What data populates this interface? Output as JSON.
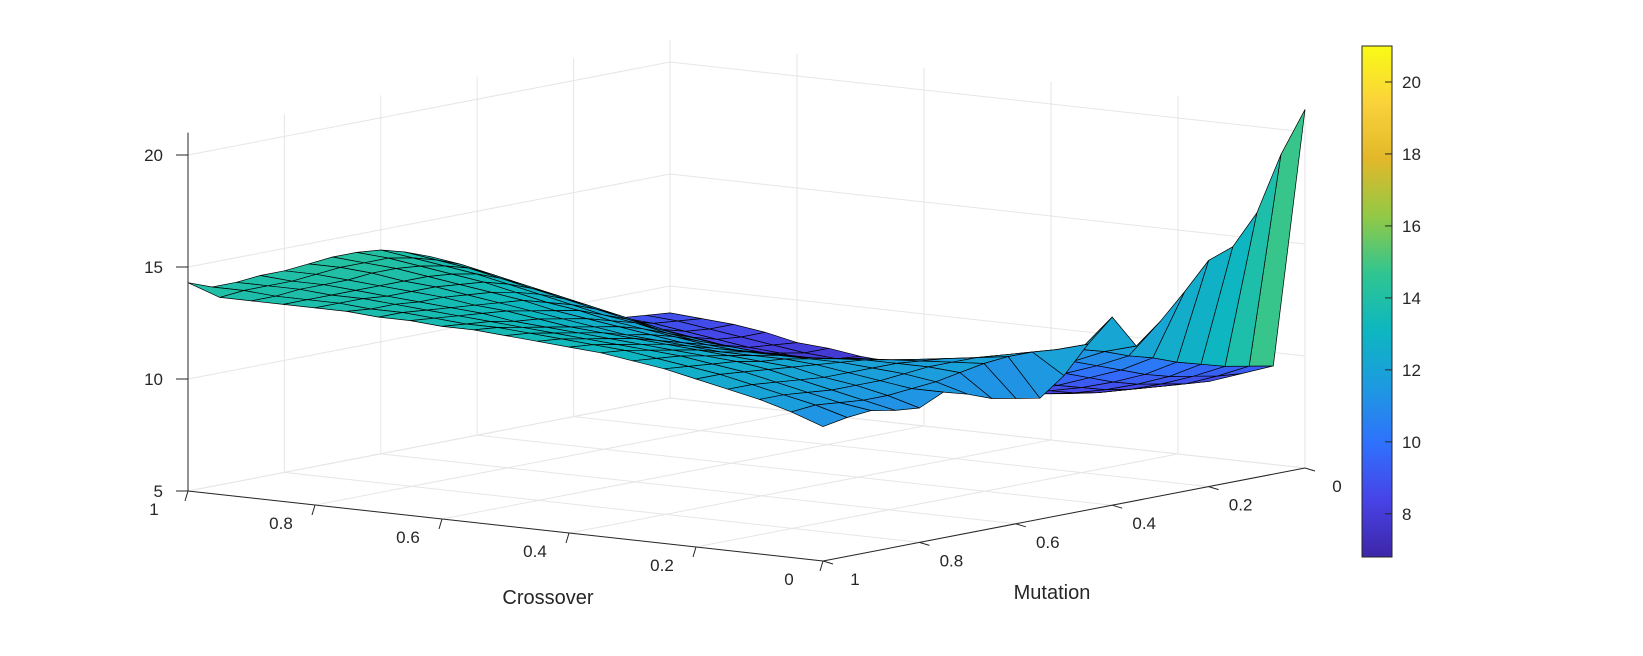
{
  "chart_data": {
    "type": "surface",
    "title": "",
    "xlabel": "Crossover",
    "ylabel": "Mutation",
    "zlabel": "",
    "xlim": [
      0,
      1
    ],
    "ylim": [
      0,
      1
    ],
    "zlim": [
      5,
      21
    ],
    "x_ticks": [
      {
        "value": 0,
        "label": "0"
      },
      {
        "value": 0.2,
        "label": "0.2"
      },
      {
        "value": 0.4,
        "label": "0.4"
      },
      {
        "value": 0.6,
        "label": "0.6"
      },
      {
        "value": 0.8,
        "label": "0.8"
      },
      {
        "value": 1,
        "label": "1"
      }
    ],
    "y_ticks": [
      {
        "value": 0,
        "label": "0"
      },
      {
        "value": 0.2,
        "label": "0.2"
      },
      {
        "value": 0.4,
        "label": "0.4"
      },
      {
        "value": 0.6,
        "label": "0.6"
      },
      {
        "value": 0.8,
        "label": "0.8"
      },
      {
        "value": 1,
        "label": "1"
      }
    ],
    "z_ticks": [
      {
        "value": 5,
        "label": "5"
      },
      {
        "value": 10,
        "label": "10"
      },
      {
        "value": 15,
        "label": "15"
      },
      {
        "value": 20,
        "label": "20"
      }
    ],
    "colorbar": {
      "limits": [
        6.8,
        21
      ],
      "ticks": [
        {
          "value": 8,
          "label": "8"
        },
        {
          "value": 10,
          "label": "10"
        },
        {
          "value": 12,
          "label": "12"
        },
        {
          "value": 14,
          "label": "14"
        },
        {
          "value": 16,
          "label": "16"
        },
        {
          "value": 18,
          "label": "18"
        },
        {
          "value": 20,
          "label": "20"
        }
      ]
    },
    "colormap": [
      "#3e26a8",
      "#4743e6",
      "#2f71fc",
      "#1d9ae0",
      "#0db7c0",
      "#30c590",
      "#92c946",
      "#e2b82a",
      "#fad23b",
      "#f9fb15"
    ],
    "grid": true,
    "x": [
      0,
      0.05,
      0.1,
      0.15,
      0.2,
      0.25,
      0.3,
      0.35,
      0.4,
      0.45,
      0.5,
      0.55,
      0.6,
      0.65,
      0.7,
      0.75,
      0.8,
      0.85,
      0.9,
      0.95,
      1
    ],
    "y": [
      0,
      0.05,
      0.1,
      0.15,
      0.2,
      0.25,
      0.3,
      0.35,
      0.4,
      0.45,
      0.5,
      0.55,
      0.6,
      0.65,
      0.7,
      0.75,
      0.8,
      0.85,
      0.9,
      0.95,
      1
    ],
    "z": [
      [
        21.0,
        9.4,
        8.9,
        8.4,
        8.1,
        7.8,
        7.7,
        7.5,
        7.4,
        7.4,
        7.3,
        7.4,
        7.5,
        7.7,
        7.8,
        8.0,
        8.1,
        8.4,
        8.6,
        8.7,
        8.8
      ],
      [
        19.2,
        9.6,
        9.0,
        8.5,
        8.2,
        7.9,
        7.7,
        7.6,
        7.5,
        7.4,
        7.4,
        7.4,
        7.5,
        7.7,
        7.9,
        8.0,
        8.2,
        8.4,
        8.6,
        8.8,
        8.9
      ],
      [
        16.8,
        9.8,
        9.2,
        8.7,
        8.3,
        8.0,
        7.8,
        7.7,
        7.6,
        7.5,
        7.5,
        7.6,
        7.6,
        7.8,
        8.0,
        8.2,
        8.3,
        8.5,
        8.7,
        8.9,
        9.0
      ],
      [
        15.5,
        10.1,
        9.4,
        8.9,
        8.5,
        8.2,
        8.0,
        7.9,
        7.8,
        7.7,
        7.7,
        7.8,
        7.9,
        8.0,
        8.2,
        8.4,
        8.6,
        8.8,
        9.0,
        9.2,
        9.3
      ],
      [
        15.1,
        10.4,
        9.7,
        9.2,
        8.8,
        8.5,
        8.3,
        8.1,
        8.0,
        8.0,
        8.0,
        8.1,
        8.2,
        8.3,
        8.5,
        8.7,
        8.9,
        9.1,
        9.4,
        9.6,
        9.7
      ],
      [
        13.9,
        10.8,
        10.1,
        9.6,
        9.1,
        8.8,
        8.6,
        8.5,
        8.4,
        8.3,
        8.4,
        8.5,
        8.6,
        8.7,
        8.9,
        9.1,
        9.3,
        9.6,
        9.8,
        10.0,
        10.2
      ],
      [
        12.8,
        11.1,
        10.5,
        10.0,
        9.6,
        9.2,
        9.0,
        8.9,
        8.8,
        8.7,
        8.8,
        8.9,
        9.0,
        9.2,
        9.4,
        9.6,
        9.8,
        10.1,
        10.3,
        10.6,
        10.7
      ],
      [
        11.9,
        11.5,
        10.9,
        10.4,
        10.0,
        9.7,
        9.4,
        9.3,
        9.2,
        9.2,
        9.3,
        9.4,
        9.5,
        9.7,
        9.9,
        10.1,
        10.4,
        10.7,
        10.9,
        11.2,
        11.4
      ],
      [
        13.4,
        11.8,
        11.3,
        10.8,
        10.4,
        10.1,
        9.9,
        9.7,
        9.7,
        9.7,
        9.8,
        9.9,
        10.0,
        10.2,
        10.5,
        10.7,
        11.0,
        11.3,
        11.6,
        11.9,
        12.1
      ],
      [
        12.4,
        12.0,
        11.6,
        11.2,
        10.8,
        10.5,
        10.3,
        10.2,
        10.1,
        10.2,
        10.3,
        10.4,
        10.6,
        10.8,
        11.1,
        11.4,
        11.7,
        12.0,
        12.3,
        12.6,
        12.8
      ],
      [
        11.2,
        12.1,
        11.8,
        11.5,
        11.2,
        10.9,
        10.7,
        10.6,
        10.6,
        10.6,
        10.8,
        10.9,
        11.1,
        11.4,
        11.7,
        12.0,
        12.3,
        12.6,
        12.9,
        13.2,
        13.4
      ],
      [
        10.4,
        12.1,
        11.9,
        11.7,
        11.5,
        11.3,
        11.1,
        11.0,
        11.0,
        11.1,
        11.2,
        11.4,
        11.6,
        11.9,
        12.2,
        12.5,
        12.8,
        13.1,
        13.4,
        13.6,
        13.8
      ],
      [
        10.6,
        12.0,
        11.9,
        11.8,
        11.7,
        11.6,
        11.4,
        11.4,
        11.4,
        11.5,
        11.6,
        11.8,
        12.1,
        12.3,
        12.6,
        12.9,
        13.2,
        13.5,
        13.7,
        13.9,
        14.1
      ],
      [
        10.8,
        11.8,
        11.9,
        11.9,
        11.9,
        11.8,
        11.7,
        11.7,
        11.7,
        11.8,
        12.0,
        12.2,
        12.4,
        12.7,
        12.9,
        13.2,
        13.5,
        13.7,
        13.9,
        14.1,
        14.2
      ],
      [
        11.2,
        11.6,
        11.8,
        11.9,
        12.0,
        12.0,
        12.0,
        12.0,
        12.0,
        12.1,
        12.3,
        12.5,
        12.7,
        12.9,
        13.2,
        13.4,
        13.6,
        13.8,
        14.0,
        14.1,
        14.2
      ],
      [
        11.5,
        11.5,
        11.7,
        11.9,
        12.1,
        12.2,
        12.2,
        12.2,
        12.3,
        12.4,
        12.5,
        12.7,
        12.9,
        13.1,
        13.3,
        13.5,
        13.7,
        13.8,
        14.0,
        14.1,
        14.1
      ],
      [
        11.0,
        11.4,
        11.7,
        11.9,
        12.2,
        12.3,
        12.4,
        12.5,
        12.6,
        12.7,
        12.8,
        12.9,
        13.1,
        13.3,
        13.4,
        13.6,
        13.7,
        13.8,
        13.9,
        14.0,
        14.0
      ],
      [
        11.1,
        11.4,
        11.7,
        12.0,
        12.3,
        12.5,
        12.6,
        12.7,
        12.8,
        12.9,
        13.0,
        13.1,
        13.2,
        13.4,
        13.5,
        13.6,
        13.7,
        13.8,
        13.9,
        13.9,
        14.0
      ],
      [
        11.3,
        11.5,
        11.8,
        12.1,
        12.4,
        12.6,
        12.8,
        12.9,
        13.0,
        13.1,
        13.2,
        13.3,
        13.4,
        13.5,
        13.6,
        13.7,
        13.8,
        13.8,
        13.9,
        13.9,
        13.9
      ],
      [
        11.2,
        11.6,
        11.9,
        12.2,
        12.5,
        12.7,
        12.9,
        13.1,
        13.2,
        13.3,
        13.4,
        13.5,
        13.5,
        13.6,
        13.7,
        13.7,
        13.8,
        13.8,
        13.8,
        13.9,
        13.9
      ],
      [
        11.0,
        11.5,
        11.9,
        12.2,
        12.5,
        12.8,
        13.0,
        13.2,
        13.3,
        13.4,
        13.5,
        13.6,
        13.6,
        13.7,
        13.7,
        13.8,
        13.8,
        13.8,
        13.8,
        13.8,
        14.3
      ]
    ]
  }
}
